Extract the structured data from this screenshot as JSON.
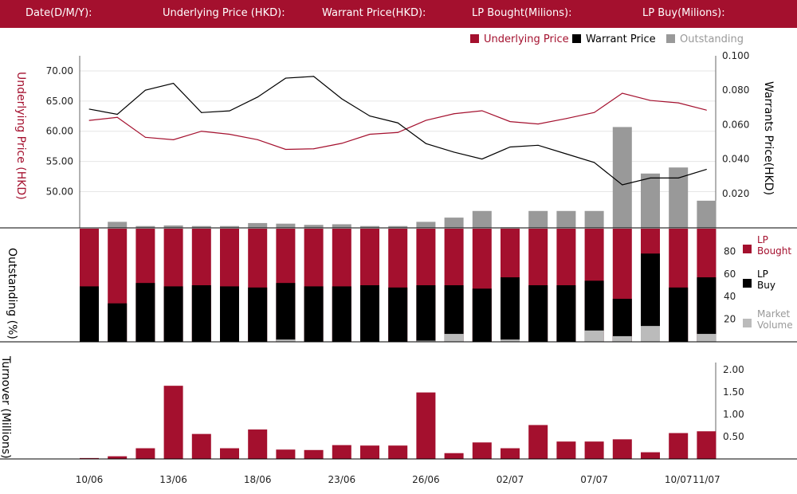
{
  "header": {
    "date_label": "Date(D/M/Y):",
    "underlying_label": "Underlying Price (HKD):",
    "warrant_label": "Warrant  Price(HKD):",
    "lp_bought_label": "LP Bought(Milions):",
    "lp_buy_label": "LP Buy(Milions):"
  },
  "legend_top": [
    {
      "label": "Underlying Price",
      "color": "#a4102e"
    },
    {
      "label": "Warrant  Price",
      "color": "#000000"
    },
    {
      "label": "Outstanding",
      "color": "#999999"
    }
  ],
  "axis_titles": {
    "underlying": "Underlying Price (HKD)",
    "warrant": "Warrants  Price(HKD)",
    "outstanding": "Outstanding (%)",
    "turnover": "Turnover (Millions)"
  },
  "legend_mid": [
    {
      "line1": "LP",
      "line2": "Bought",
      "color": "#a4102e"
    },
    {
      "line1": "LP",
      "line2": "Buy",
      "color": "#000000"
    },
    {
      "line1": "Market",
      "line2": "Volume",
      "color": "#bbbbbb"
    }
  ],
  "colors": {
    "accent": "#a4102e",
    "black": "#000000",
    "outstanding": "#999999",
    "market": "#bbbbbb"
  },
  "chart_data": [
    {
      "type": "line",
      "x_labels": [
        "10/06",
        "13/06",
        "18/06",
        "23/06",
        "26/06",
        "02/07",
        "07/07",
        "10/07",
        "11/07"
      ],
      "x_label_index": [
        0,
        3,
        6,
        9,
        12,
        15,
        18,
        21,
        22
      ],
      "series": [
        {
          "name": "Underlying Price",
          "axis": "left",
          "values": [
            61.8,
            62.3,
            59.0,
            58.6,
            60.0,
            59.5,
            58.6,
            57.0,
            57.1,
            58.0,
            59.5,
            59.8,
            61.8,
            62.9,
            63.4,
            61.6,
            61.2,
            62.1,
            63.1,
            66.3,
            65.1,
            64.7,
            63.5
          ]
        },
        {
          "name": "Warrant  Price",
          "axis": "right",
          "values": [
            0.069,
            0.066,
            0.08,
            0.084,
            0.067,
            0.068,
            0.076,
            0.087,
            0.088,
            0.075,
            0.065,
            0.061,
            0.049,
            0.044,
            0.04,
            0.047,
            0.048,
            0.043,
            0.038,
            0.025,
            0.029,
            0.029,
            0.034
          ]
        },
        {
          "name": "Outstanding",
          "axis": "left",
          "type": "bar",
          "values": [
            0,
            1.0,
            0.3,
            0.4,
            0.3,
            0.3,
            0.8,
            0.7,
            0.5,
            0.6,
            0.3,
            0.3,
            1.0,
            1.7,
            2.8,
            0.1,
            2.8,
            2.8,
            2.8,
            16.7,
            9.0,
            10.0,
            4.5
          ]
        }
      ],
      "y_left": {
        "ticks": [
          "70.00",
          "65.00",
          "60.00",
          "55.00",
          "50.00"
        ],
        "range": [
          44.0,
          72.5
        ]
      },
      "y_right": {
        "ticks": [
          "0.100",
          "0.080",
          "0.060",
          "0.040",
          "0.020"
        ],
        "range": [
          0.0,
          0.1
        ]
      }
    },
    {
      "type": "bar",
      "ylim": [
        0,
        100
      ],
      "yticks": [
        "80",
        "60",
        "40",
        "20"
      ],
      "series": [
        {
          "name": "LP Bought",
          "values": [
            100,
            100,
            100,
            100,
            100,
            100,
            100,
            100,
            100,
            100,
            100,
            100,
            100,
            100,
            100,
            100,
            100,
            100,
            100,
            100,
            100,
            100,
            100
          ]
        },
        {
          "name": "LP Buy",
          "values": [
            49,
            34,
            52,
            49,
            50,
            49,
            48,
            52,
            49,
            49,
            50,
            48,
            50,
            50,
            47,
            57,
            50,
            50,
            54,
            38,
            78,
            48,
            57
          ]
        },
        {
          "name": "Market Volume",
          "values": [
            0,
            0,
            0,
            0,
            0,
            0,
            0,
            2,
            0,
            0,
            0,
            0,
            1,
            7,
            0,
            2,
            0,
            0,
            10,
            5,
            14,
            0,
            7
          ]
        }
      ]
    },
    {
      "type": "bar",
      "ylim": [
        0,
        2.0
      ],
      "yticks": [
        "2.00",
        "1.50",
        "1.00",
        "0.50"
      ],
      "series": [
        {
          "name": "Turnover",
          "values": [
            0.02,
            0.06,
            0.24,
            1.64,
            0.56,
            0.24,
            0.66,
            0.21,
            0.2,
            0.31,
            0.3,
            0.3,
            1.49,
            0.13,
            0.37,
            0.24,
            0.76,
            0.39,
            0.39,
            0.44,
            0.15,
            0.58,
            0.62
          ]
        }
      ]
    }
  ]
}
